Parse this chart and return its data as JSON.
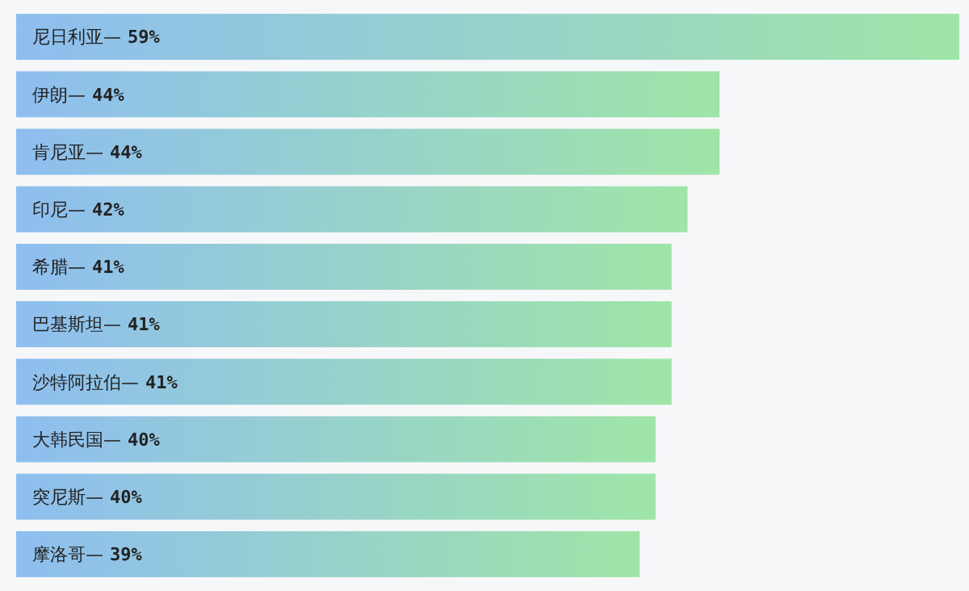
{
  "chart_data": {
    "type": "bar",
    "orientation": "horizontal",
    "categories": [
      "尼日利亚—",
      "伊朗—",
      "肯尼亚—",
      "印尼—",
      "希腊—",
      "巴基斯坦—",
      "沙特阿拉伯—",
      "大韩民国—",
      "突尼斯—",
      "摩洛哥—"
    ],
    "values": [
      59,
      44,
      44,
      42,
      41,
      41,
      41,
      40,
      40,
      39
    ],
    "value_labels": [
      "59%",
      "44%",
      "44%",
      "42%",
      "41%",
      "41%",
      "41%",
      "40%",
      "40%",
      "39%"
    ],
    "color": "#93cdcb"
  }
}
